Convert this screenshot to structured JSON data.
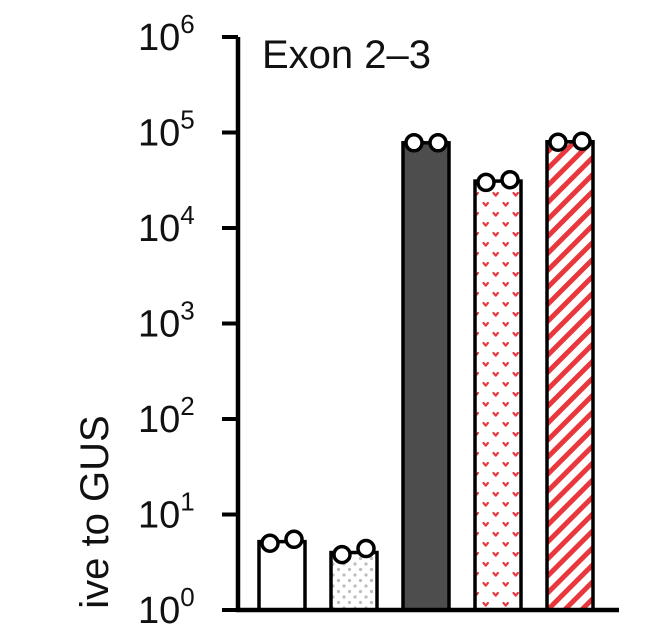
{
  "chart_data": {
    "type": "bar",
    "title": "Exon 2–3",
    "ylabel": "ive to GUS",
    "yscale": "log",
    "ylim": [
      1,
      1000000
    ],
    "yticks": [
      {
        "value": 1,
        "base": "10",
        "exp": "0"
      },
      {
        "value": 10,
        "base": "10",
        "exp": "1"
      },
      {
        "value": 100,
        "base": "10",
        "exp": "2"
      },
      {
        "value": 1000,
        "base": "10",
        "exp": "3"
      },
      {
        "value": 10000,
        "base": "10",
        "exp": "4"
      },
      {
        "value": 100000,
        "base": "10",
        "exp": "5"
      },
      {
        "value": 1000000,
        "base": "10",
        "exp": "6"
      }
    ],
    "bars": [
      {
        "value": 5.2,
        "points": [
          5.0,
          5.5
        ],
        "fill": "white"
      },
      {
        "value": 4.0,
        "points": [
          3.8,
          4.4
        ],
        "fill": "dots-gray"
      },
      {
        "value": 78000,
        "points": [
          78000,
          78000
        ],
        "fill": "solid-dark"
      },
      {
        "value": 31000,
        "points": [
          30000,
          32000
        ],
        "fill": "hearts-red"
      },
      {
        "value": 80000,
        "points": [
          79000,
          81000
        ],
        "fill": "stripes-red"
      }
    ],
    "grid": false,
    "legend": "none",
    "colors": {
      "dark": "#4d4d4d",
      "red": "#e8383d",
      "dots": "#bdbdbd",
      "axis": "#000000"
    }
  }
}
